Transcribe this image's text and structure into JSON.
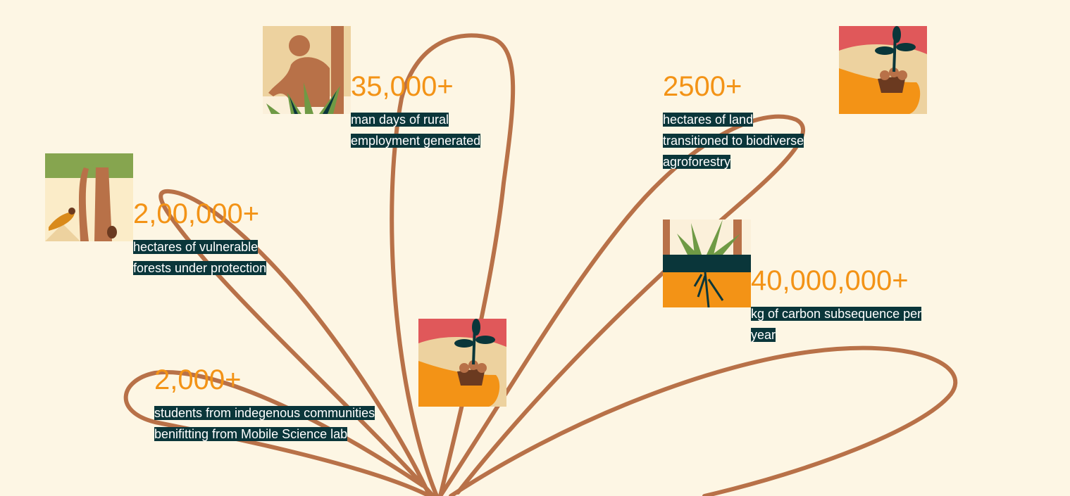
{
  "colors": {
    "background": "#fdf6e4",
    "number": "#f39316",
    "label_bg": "#0a363a",
    "stem": "#b87148"
  },
  "stats": [
    {
      "value": "35,000+",
      "label": " man days of rural employment generated",
      "icon": "farmer-planting-illustration"
    },
    {
      "value": "2,00,000+",
      "label": " hectares of vulnerable forests under protection",
      "icon": "forest-bird-illustration"
    },
    {
      "value": "2,000+",
      "label": " students from indegenous communities benifitting from Mobile Science lab",
      "icon": "hand-holding-seedling-illustration"
    },
    {
      "value": "2500+",
      "label": " hectares of land transitioned to biodiverse agroforestry",
      "icon": "hand-holding-seedling-illustration"
    },
    {
      "value": "40,000,000+",
      "label": " kg of carbon subsequence per year",
      "icon": "plant-roots-soil-illustration"
    }
  ]
}
